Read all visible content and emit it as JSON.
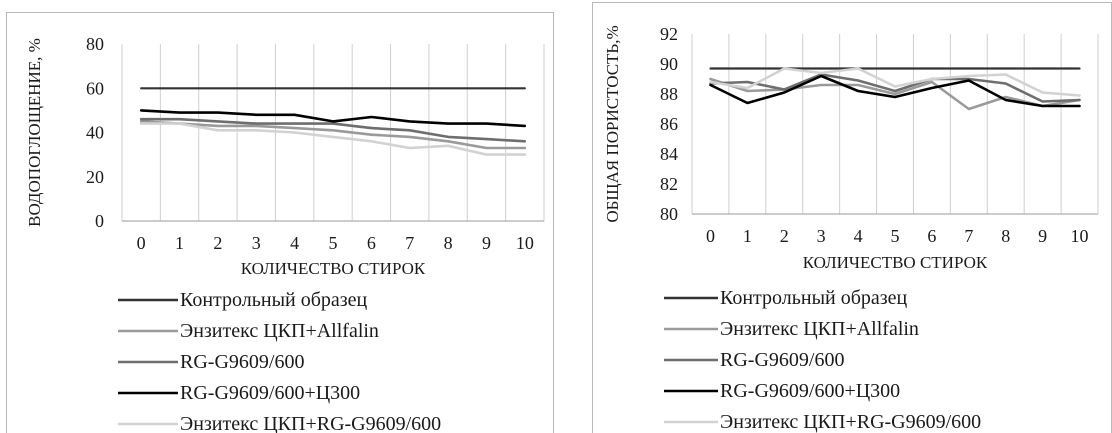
{
  "colors": {
    "control": "#333333",
    "enzitex_allfalin": "#9a9a9a",
    "rg": "#6e6e6e",
    "rg_c300": "#000000",
    "enzitex_rg": "#d2d2d2",
    "grid": "#cfcfcf"
  },
  "chart_data": [
    {
      "type": "line",
      "xlabel": "КОЛИЧЕСТВО СТИРОК",
      "ylabel": "ВОДОПОГЛОЩЕНИЕ, %",
      "x": [
        0,
        1,
        2,
        3,
        4,
        5,
        6,
        7,
        8,
        9,
        10
      ],
      "yticks": [
        0,
        20,
        40,
        60,
        80
      ],
      "ylim": [
        0,
        80
      ],
      "grid": "vertical",
      "legend": "bottom",
      "series": [
        {
          "name": "Контрольный образец",
          "values": [
            60,
            60,
            60,
            60,
            60,
            60,
            60,
            60,
            60,
            60,
            60
          ]
        },
        {
          "name": "Энзитекс ЦКП+Allfalin",
          "values": [
            45,
            44,
            43,
            43,
            42,
            41,
            39,
            38,
            36,
            33,
            33
          ]
        },
        {
          "name": "RG-G9609/600",
          "values": [
            46,
            46,
            45,
            44,
            44,
            44,
            42,
            41,
            38,
            37,
            36
          ]
        },
        {
          "name": "RG-G9609/600+Ц300",
          "values": [
            50,
            49,
            49,
            48,
            48,
            45,
            47,
            45,
            44,
            44,
            43
          ]
        },
        {
          "name": "Энзитекс ЦКП+RG-G9609/600",
          "values": [
            44,
            44,
            41,
            41,
            40,
            38,
            36,
            33,
            34,
            30,
            30
          ]
        }
      ]
    },
    {
      "type": "line",
      "xlabel": "КОЛИЧЕСТВО СТИРОК",
      "ylabel": "ОБЩАЯ ПОРИСТОСТЬ,%",
      "x": [
        0,
        1,
        2,
        3,
        4,
        5,
        6,
        7,
        8,
        9,
        10
      ],
      "yticks": [
        80,
        82,
        84,
        86,
        88,
        90,
        92
      ],
      "ylim": [
        80,
        92
      ],
      "grid": "vertical",
      "legend": "bottom",
      "series": [
        {
          "name": "Контрольный образец",
          "values": [
            89.7,
            89.7,
            89.7,
            89.7,
            89.7,
            89.7,
            89.7,
            89.7,
            89.7,
            89.7,
            89.7
          ]
        },
        {
          "name": "Энзитекс ЦКП+Allfalin",
          "values": [
            89.0,
            88.2,
            88.3,
            88.6,
            88.6,
            88.0,
            88.8,
            87.0,
            87.8,
            87.2,
            87.6
          ]
        },
        {
          "name": "RG-G9609/600",
          "values": [
            88.7,
            88.8,
            88.3,
            89.3,
            88.9,
            88.2,
            89.0,
            89.0,
            88.7,
            87.5,
            87.6
          ]
        },
        {
          "name": "RG-G9609/600+Ц300",
          "values": [
            88.6,
            87.4,
            88.1,
            89.2,
            88.2,
            87.8,
            88.4,
            88.9,
            87.6,
            87.2,
            87.2
          ]
        },
        {
          "name": "Энзитекс ЦКП+RG-G9609/600",
          "values": [
            88.8,
            88.4,
            89.7,
            89.4,
            89.7,
            88.5,
            89.0,
            89.2,
            89.3,
            88.1,
            87.9
          ]
        }
      ]
    }
  ]
}
